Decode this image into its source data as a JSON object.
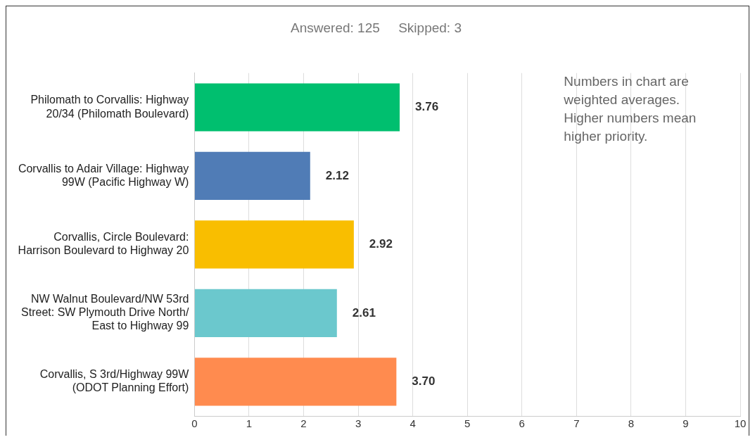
{
  "chart_data": {
    "type": "bar",
    "orientation": "horizontal",
    "title": "Answered: 125     Skipped: 3",
    "categories": [
      "Philomath to Corvallis: Highway 20/34 (Philomath Boulevard)",
      "Corvallis to Adair Village: Highway 99W (Pacific Highway W)",
      "Corvallis, Circle Boulevard: Harrison Boulevard to Highway 20",
      "NW Walnut Boulevard/NW 53rd Street: SW Plymouth Drive North/ East to Highway 99",
      "Corvallis, S 3rd/Highway 99W (ODOT Planning Effort)"
    ],
    "values": [
      3.76,
      2.12,
      2.92,
      2.61,
      3.7
    ],
    "value_labels": [
      "3.76",
      "2.12",
      "2.92",
      "2.61",
      "3.70"
    ],
    "colors": [
      "#00bf6f",
      "#507cb6",
      "#f9be00",
      "#6bc8cd",
      "#ff8b4f"
    ],
    "xlim": [
      0,
      10
    ],
    "xticks": [
      0,
      1,
      2,
      3,
      4,
      5,
      6,
      7,
      8,
      9,
      10
    ],
    "grid": "x",
    "legend": false,
    "annotations": [
      "Numbers in chart are weighted averages. Higher numbers mean higher priority."
    ]
  }
}
